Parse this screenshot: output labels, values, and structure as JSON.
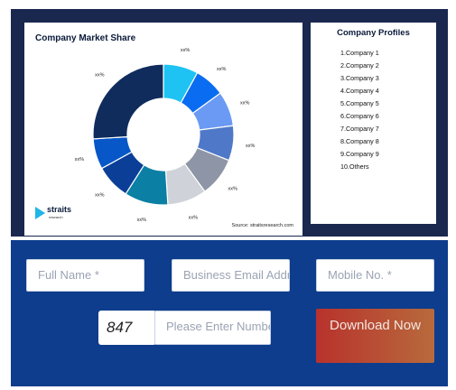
{
  "chart": {
    "title": "Company Market Share",
    "source": "Source: straitsresearch.com",
    "logo_text": "straits",
    "logo_sub": "research"
  },
  "chart_data": {
    "type": "pie",
    "title": "Company Market Share",
    "categories": [
      "",
      "",
      "",
      "",
      "",
      "",
      "",
      "",
      "",
      ""
    ],
    "values": [
      8,
      7,
      8,
      8,
      9,
      9,
      10,
      8,
      7,
      26
    ],
    "data_labels": [
      "xx%",
      "xx%",
      "xx%",
      "xx%",
      "xx%",
      "xx%",
      "xx%",
      "xx%",
      "xx%",
      "xx%"
    ],
    "colors": [
      "#1fc3f3",
      "#0a6cf0",
      "#6a9af4",
      "#4f79c8",
      "#8d95a6",
      "#cfd2d9",
      "#0b7fa4",
      "#0b3f97",
      "#0757c9",
      "#0f2c5c"
    ]
  },
  "profiles": {
    "title": "Company Profiles",
    "items": [
      "1.Company 1",
      "2.Company 2",
      "3.Company 3",
      "4.Company 4",
      "5.Company 5",
      "6.Company 6",
      "7.Company 7",
      "8.Company 8",
      "9.Company 9",
      "10.Others"
    ]
  },
  "form": {
    "full_name_placeholder": "Full Name *",
    "email_placeholder": "Business Email Address *",
    "mobile_placeholder": "Mobile No. *",
    "captcha_text": "847",
    "captcha_placeholder": "Please Enter Number",
    "download_label": "Download Now"
  }
}
